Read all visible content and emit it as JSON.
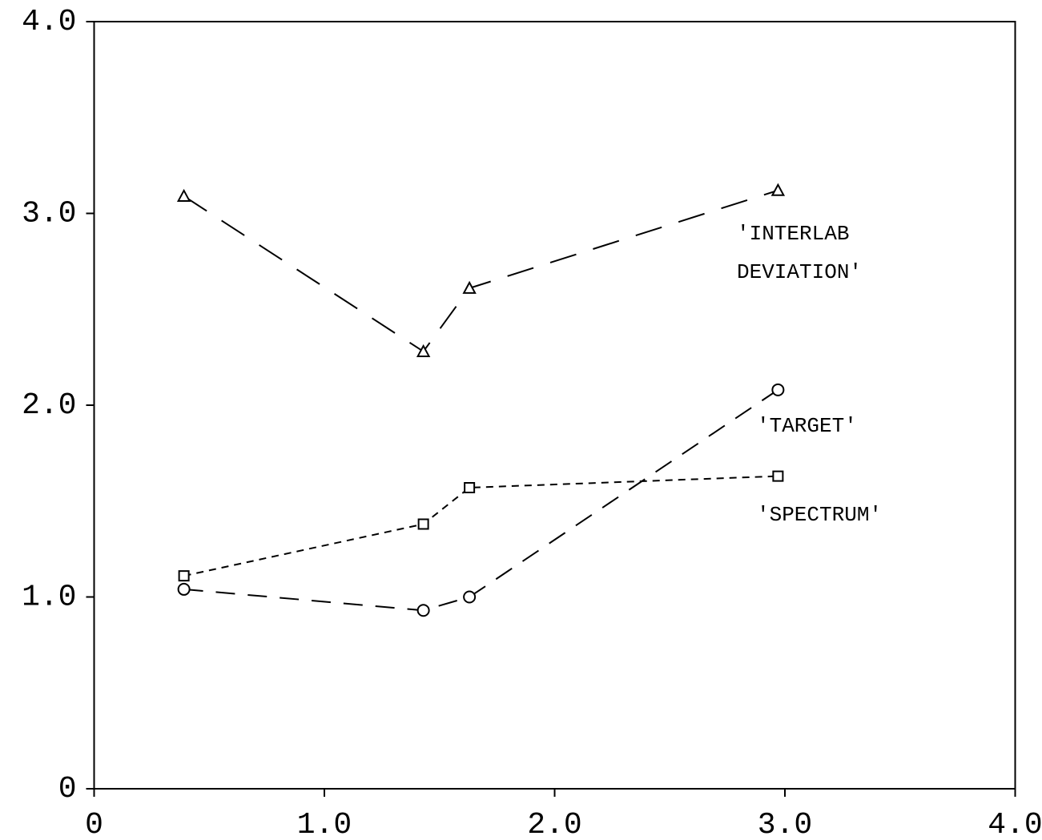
{
  "chart_data": {
    "type": "line",
    "xlim": [
      0,
      4
    ],
    "ylim": [
      0,
      4
    ],
    "xticks": [
      0,
      {
        "value": 1,
        "label": "1.0"
      },
      {
        "value": 2,
        "label": "2.0"
      },
      {
        "value": 3,
        "label": "3.0"
      },
      {
        "value": 4,
        "label": "4.0"
      }
    ],
    "yticks": [
      0,
      {
        "value": 1,
        "label": "1.0"
      },
      {
        "value": 2,
        "label": "2.0"
      },
      {
        "value": 3,
        "label": "3.0"
      },
      {
        "value": 4,
        "label": "4.0"
      }
    ],
    "color": "#000000",
    "series": [
      {
        "label": [
          "'INTERLAB",
          "DEVIATION'"
        ],
        "marker": "triangle",
        "line_style": "long-dash",
        "x": [
          0.39,
          1.43,
          1.63,
          2.97
        ],
        "values": [
          3.09,
          2.28,
          2.61,
          3.12
        ]
      },
      {
        "label": [
          "'TARGET'"
        ],
        "marker": "circle",
        "line_style": "medium-dash",
        "x": [
          0.39,
          1.43,
          1.63,
          2.97
        ],
        "values": [
          1.04,
          0.93,
          1.0,
          2.08
        ]
      },
      {
        "label": [
          "'SPECTRUM'"
        ],
        "marker": "square",
        "line_style": "short-dash",
        "x": [
          0.39,
          1.43,
          1.63,
          2.97
        ],
        "values": [
          1.11,
          1.38,
          1.57,
          1.63
        ]
      }
    ]
  }
}
